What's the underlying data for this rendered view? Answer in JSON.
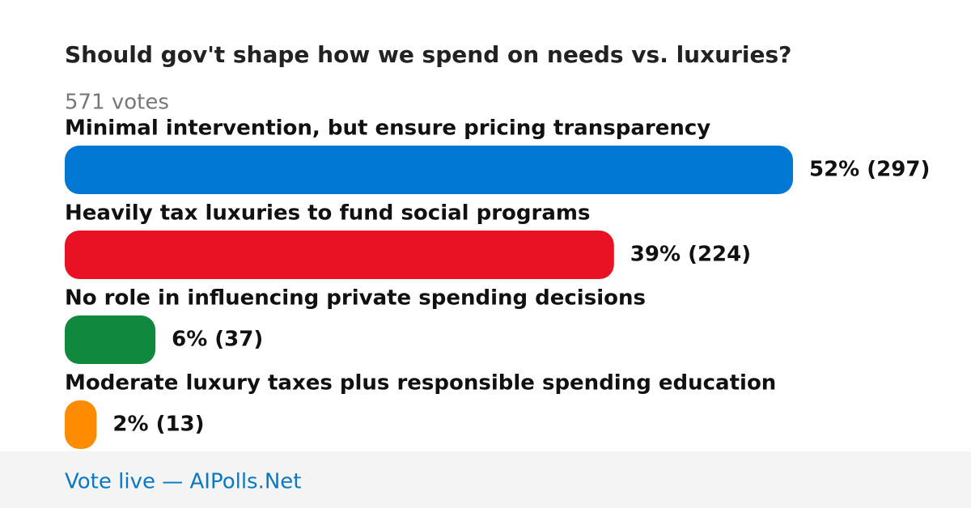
{
  "chart_data": {
    "type": "bar",
    "orientation": "horizontal",
    "title": "Should gov't shape how we spend on needs vs. luxuries?",
    "subtitle": "571 votes",
    "categories": [
      "Minimal intervention, but ensure pricing transparency",
      "Heavily tax luxuries to fund social programs",
      "No role in influencing private spending decisions",
      "Moderate luxury taxes plus responsible spending education"
    ],
    "values": [
      297,
      224,
      37,
      13
    ],
    "value_labels": [
      "52% (297)",
      "39% (224)",
      "6% (37)",
      "2% (13)"
    ],
    "colors": [
      "#0078d4",
      "#e81224",
      "#10893e",
      "#ff8c00"
    ],
    "footer": "Vote live — AIPolls.Net"
  }
}
